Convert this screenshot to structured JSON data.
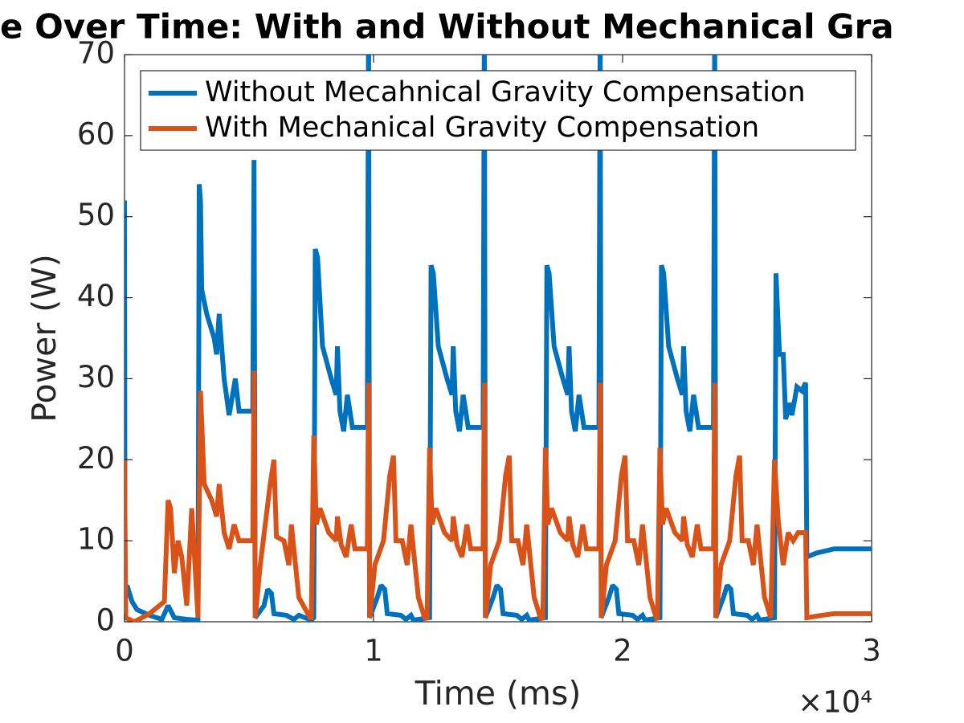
{
  "chart_data": {
    "type": "line",
    "title": "e Over Time: With and Without Mechanical Gra",
    "x_label": "Time (ms)",
    "y_label": "Power (W)",
    "x_exponent_label": "×10⁴",
    "xlim": [
      0,
      30000
    ],
    "xticks": [
      {
        "value": 0,
        "label": "0"
      },
      {
        "value": 10000,
        "label": "1"
      },
      {
        "value": 20000,
        "label": "2"
      },
      {
        "value": 30000,
        "label": "3"
      }
    ],
    "ylim": [
      0,
      70
    ],
    "yticks": [
      0,
      10,
      20,
      30,
      40,
      50,
      60,
      70
    ],
    "grid": false,
    "legend_loc": "north",
    "series": [
      {
        "name": "Without Mecahnical Gravity Compensation",
        "color": "#0072bd",
        "x": [
          0,
          20,
          100,
          300,
          500,
          1000,
          1500,
          1750,
          2000,
          2500,
          2950,
          3000,
          3050,
          3100,
          3300,
          3600,
          3700,
          3800,
          4000,
          4200,
          4450,
          4600,
          5150,
          5200,
          5250,
          5600,
          5750,
          5900,
          6000,
          6500,
          6800,
          7000,
          7500,
          7600,
          7660,
          7750,
          7950,
          8300,
          8500,
          8550,
          8650,
          8800,
          8950,
          9150,
          9750,
          9800,
          9840,
          10150,
          10300,
          10450,
          10550,
          11100,
          11300,
          11500,
          11600,
          12250,
          12310,
          12400,
          12600,
          12950,
          13150,
          13200,
          13300,
          13450,
          13600,
          13800,
          14400,
          14450,
          14490,
          14800,
          14950,
          15100,
          15200,
          15750,
          15950,
          16150,
          16250,
          16900,
          16960,
          17050,
          17250,
          17600,
          17800,
          17850,
          17950,
          18100,
          18250,
          18450,
          19050,
          19100,
          19140,
          19450,
          19600,
          19750,
          19850,
          20400,
          20600,
          20800,
          20900,
          21500,
          21560,
          21650,
          21850,
          22200,
          22400,
          22450,
          22550,
          22700,
          22850,
          23050,
          23650,
          23700,
          23740,
          24050,
          24200,
          24350,
          24450,
          25000,
          25200,
          25400,
          25500,
          26100,
          26160,
          26300,
          26450,
          26550,
          26700,
          26800,
          27000,
          27200,
          27350,
          27400,
          27800,
          28500,
          30000
        ],
        "values": [
          52,
          4,
          4.5,
          2.5,
          1.5,
          0.8,
          0.3,
          2,
          0.5,
          0.3,
          0.2,
          54,
          52,
          41,
          38,
          35,
          33,
          38,
          30,
          25.5,
          30,
          26,
          26,
          57,
          0.5,
          2,
          4,
          3.5,
          1,
          0.8,
          0.3,
          0.8,
          0.2,
          0.5,
          46,
          45,
          34,
          30,
          28,
          34,
          26,
          23.5,
          28,
          24,
          24,
          75,
          0.5,
          3,
          4.5,
          4,
          1,
          0.8,
          0.3,
          0.8,
          0.2,
          0.5,
          44,
          43,
          34,
          30,
          28,
          34,
          26,
          23.5,
          28,
          24,
          24,
          75,
          0.5,
          3,
          4.5,
          4,
          1,
          0.8,
          0.3,
          0.8,
          0.2,
          0.5,
          44,
          43,
          34,
          30,
          28,
          34,
          26,
          23.5,
          28,
          24,
          24,
          75,
          0.5,
          3,
          4.5,
          4,
          1,
          0.8,
          0.3,
          0.8,
          0.2,
          0.5,
          44,
          43,
          34,
          30,
          28,
          34,
          26,
          23.5,
          28,
          24,
          24,
          75,
          0.5,
          3,
          4.5,
          4,
          1,
          0.8,
          0.3,
          0.8,
          0.2,
          0.5,
          43,
          33,
          33,
          25,
          27,
          25.5,
          29,
          28.5,
          29.5,
          8,
          8.5,
          9,
          9
        ]
      },
      {
        "name": "With Mechanical Gravity Compensation",
        "color": "#d95319",
        "x": [
          0,
          50,
          400,
          1000,
          1600,
          1750,
          1850,
          2000,
          2150,
          2300,
          2500,
          2700,
          2950,
          3050,
          3200,
          3500,
          3700,
          3800,
          4000,
          4200,
          4400,
          4600,
          5150,
          5200,
          5250,
          5450,
          5850,
          6000,
          6100,
          6400,
          6600,
          6700,
          7000,
          7450,
          7500,
          7600,
          7700,
          7850,
          8200,
          8500,
          8550,
          8700,
          8900,
          9100,
          9250,
          9750,
          9800,
          9850,
          10050,
          10400,
          10650,
          10800,
          10900,
          11150,
          11350,
          11500,
          11800,
          12050,
          12150,
          12250,
          12350,
          12500,
          12850,
          13150,
          13200,
          13350,
          13550,
          13750,
          13900,
          14400,
          14450,
          14500,
          14700,
          15050,
          15300,
          15450,
          15550,
          15800,
          16000,
          16150,
          16450,
          16700,
          16800,
          16900,
          17000,
          17150,
          17500,
          17800,
          17850,
          18000,
          18200,
          18400,
          18550,
          19050,
          19100,
          19150,
          19350,
          19700,
          19950,
          20100,
          20200,
          20450,
          20650,
          20800,
          21100,
          21350,
          21400,
          21500,
          21600,
          21750,
          22100,
          22400,
          22450,
          22600,
          22800,
          23000,
          23150,
          23650,
          23700,
          23750,
          23950,
          24300,
          24550,
          24700,
          24800,
          25050,
          25250,
          25400,
          25700,
          25950,
          26100,
          26250,
          26450,
          26650,
          26850,
          27050,
          27350,
          27400,
          28000,
          28500,
          30000
        ],
        "values": [
          20,
          0.5,
          0,
          1,
          2.5,
          15,
          14,
          6,
          10,
          8,
          2,
          14,
          0.5,
          28.5,
          17,
          15,
          13,
          17,
          11,
          9,
          12,
          10,
          10,
          31,
          0.5,
          7,
          17,
          20,
          10.5,
          10,
          7,
          12,
          3,
          0.5,
          0.5,
          23,
          12,
          14,
          11,
          10,
          13,
          9.5,
          8,
          12,
          9,
          9,
          29.5,
          0.5,
          7,
          10,
          18,
          20.5,
          10,
          10,
          7,
          12,
          3,
          0.5,
          0.5,
          21.5,
          12,
          14,
          11,
          10,
          13,
          9.5,
          8,
          12,
          9,
          9,
          29.5,
          0.5,
          7,
          10,
          18,
          20.5,
          10,
          10,
          7,
          12,
          3,
          0.5,
          0.5,
          21.5,
          12,
          14,
          11,
          10,
          13,
          9.5,
          8,
          12,
          9,
          9,
          29.5,
          0.5,
          7,
          10,
          18,
          20.5,
          10,
          10,
          7,
          12,
          3,
          0.5,
          0.5,
          21.5,
          12,
          14,
          11,
          10,
          13,
          9.5,
          8,
          12,
          9,
          9,
          29.5,
          0.5,
          7,
          10,
          18,
          20.5,
          10,
          10,
          7,
          12,
          3,
          0.5,
          20,
          12.5,
          7,
          11,
          10,
          11,
          11,
          0.5,
          0.8,
          1,
          1
        ]
      }
    ]
  }
}
